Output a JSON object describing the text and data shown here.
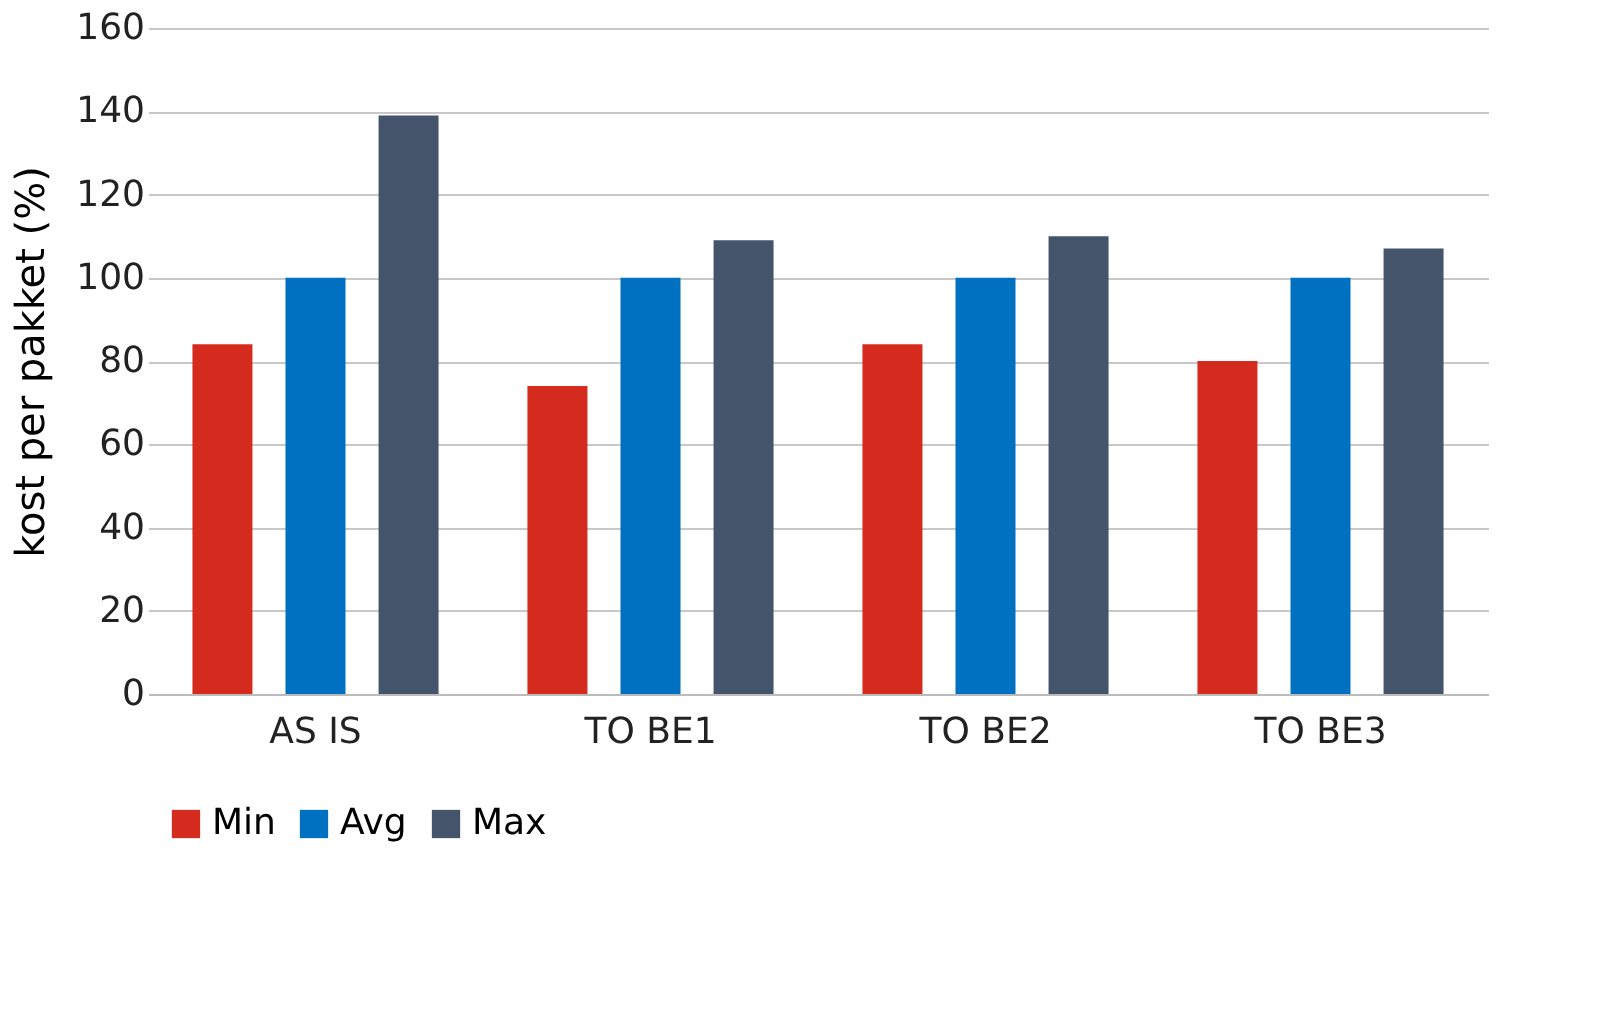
{
  "chart_data": {
    "type": "bar",
    "ylabel": "kost per pakket (%)",
    "categories": [
      "AS IS",
      "TO BE1",
      "TO BE2",
      "TO BE3"
    ],
    "series": [
      {
        "name": "Min",
        "color": "#d52b1e",
        "values": [
          84,
          74,
          84,
          80
        ]
      },
      {
        "name": "Avg",
        "color": "#0070c0",
        "values": [
          100,
          100,
          100,
          100
        ]
      },
      {
        "name": "Max",
        "color": "#44546a",
        "values": [
          139,
          109,
          110,
          107
        ]
      }
    ],
    "ylim": [
      0,
      160
    ],
    "yticks": [
      0,
      20,
      40,
      60,
      80,
      100,
      120,
      140,
      160
    ],
    "grid": "y",
    "legend": "bottom"
  }
}
